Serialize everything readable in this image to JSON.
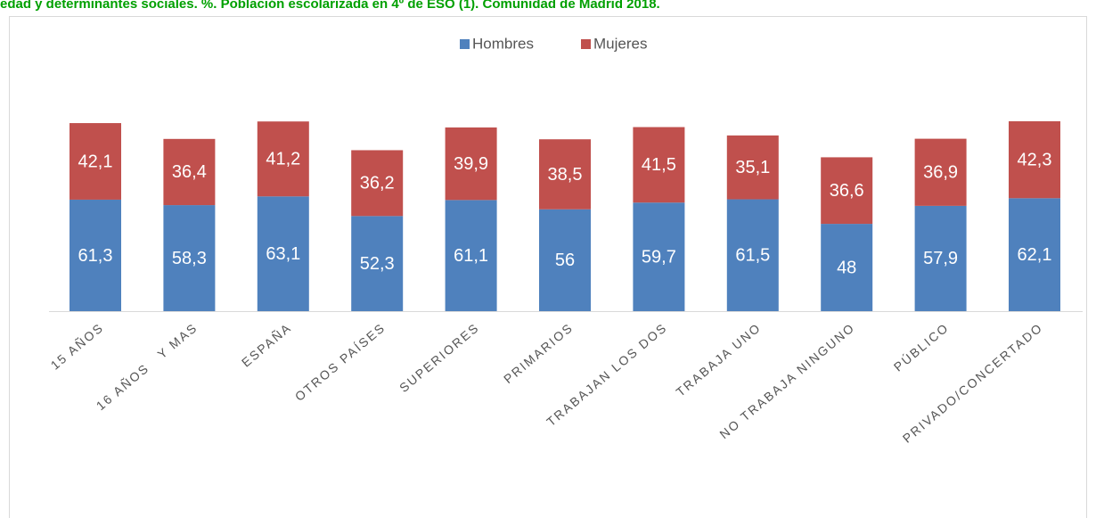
{
  "chart_data": {
    "type": "stacked-bar",
    "title": "edad y determinantes sociales. %. Población escolarizada en 4º de ESO (1). Comunidad de Madrid 2018.",
    "categories": [
      "15 AÑOS",
      "16 AÑOS   Y MAS",
      "ESPAÑA",
      "OTROS PAÍSES",
      "SUPERIORES",
      "PRIMARIOS",
      "TRABAJAN LOS DOS",
      "TRABAJA UNO",
      "NO TRABAJA NINGUNO",
      "PÚBLICO",
      "PRIVADO/CONCERTADO"
    ],
    "series": [
      {
        "name": "Hombres",
        "color": "#4f81bd",
        "values": [
          61.3,
          58.3,
          63.1,
          52.3,
          61.1,
          56,
          59.7,
          61.5,
          48,
          57.9,
          62.1
        ],
        "value_labels": [
          "61,3",
          "58,3",
          "63,1",
          "52,3",
          "61,1",
          "56",
          "59,7",
          "61,5",
          "48",
          "57,9",
          "62,1"
        ]
      },
      {
        "name": "Mujeres",
        "color": "#c0504d",
        "values": [
          42.1,
          36.4,
          41.2,
          36.2,
          39.9,
          38.5,
          41.5,
          35.1,
          36.6,
          36.9,
          42.3
        ],
        "value_labels": [
          "42,1",
          "36,4",
          "41,2",
          "36,2",
          "39,9",
          "38,5",
          "41,5",
          "35,1",
          "36,6",
          "36,9",
          "42,3"
        ]
      }
    ],
    "legend": "top"
  }
}
